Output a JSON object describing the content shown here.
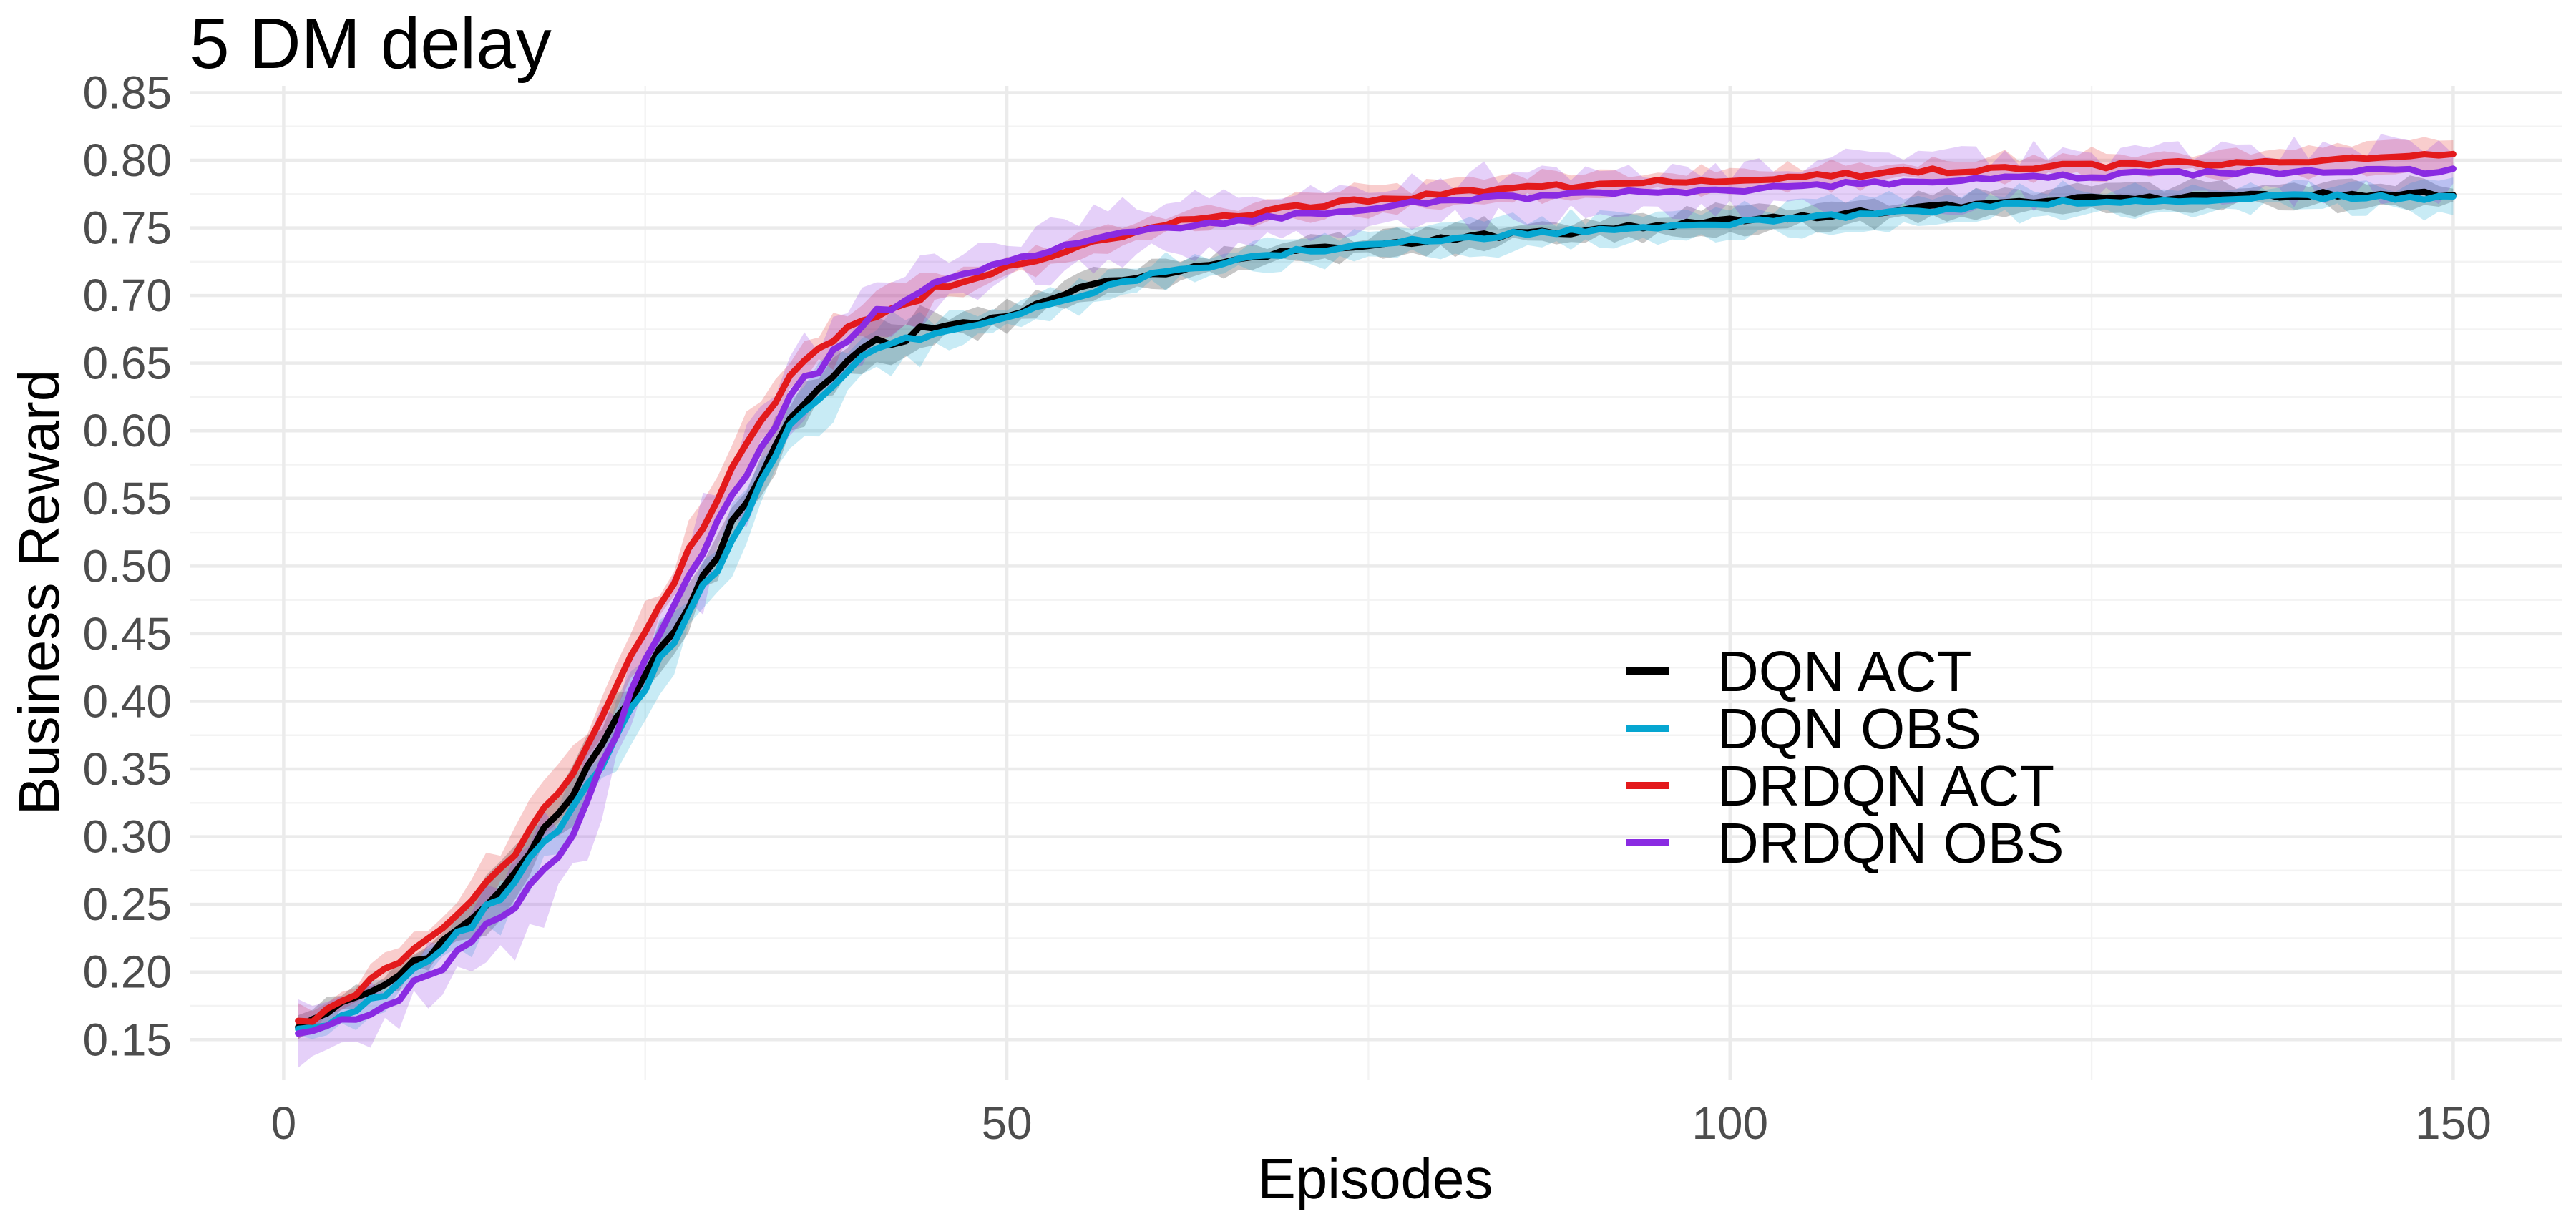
{
  "chart_data": {
    "type": "line",
    "title": "5 DM delay",
    "xlabel": "Episodes",
    "ylabel": "Business Reward",
    "xlim": [
      -6.5,
      157.5
    ],
    "ylim": [
      0.12,
      0.855
    ],
    "x_major_ticks": [
      0,
      50,
      100,
      150
    ],
    "x_tick_labels": [
      "0",
      "50",
      "100",
      "150"
    ],
    "x_minor_ticks": [
      25,
      75,
      125
    ],
    "y_major_ticks": [
      0.15,
      0.2,
      0.25,
      0.3,
      0.35,
      0.4,
      0.45,
      0.5,
      0.55,
      0.6,
      0.65,
      0.7,
      0.75,
      0.8,
      0.85
    ],
    "y_tick_labels": [
      "0.15",
      "0.20",
      "0.25",
      "0.30",
      "0.35",
      "0.40",
      "0.45",
      "0.50",
      "0.55",
      "0.60",
      "0.65",
      "0.70",
      "0.75",
      "0.80",
      "0.85"
    ],
    "y_minor_ticks": [
      0.175,
      0.225,
      0.275,
      0.325,
      0.375,
      0.425,
      0.475,
      0.525,
      0.575,
      0.625,
      0.675,
      0.725,
      0.775,
      0.825
    ],
    "grid": true,
    "legend_position": "center-right",
    "series": [
      {
        "name": "DQN ACT",
        "color": "#000000",
        "points": [
          [
            1,
            0.16
          ],
          [
            5,
            0.18
          ],
          [
            10,
            0.215
          ],
          [
            15,
            0.26
          ],
          [
            20,
            0.33
          ],
          [
            25,
            0.42
          ],
          [
            30,
            0.51
          ],
          [
            35,
            0.61
          ],
          [
            40,
            0.66
          ],
          [
            45,
            0.675
          ],
          [
            50,
            0.685
          ],
          [
            55,
            0.705
          ],
          [
            60,
            0.715
          ],
          [
            70,
            0.733
          ],
          [
            80,
            0.742
          ],
          [
            90,
            0.748
          ],
          [
            100,
            0.755
          ],
          [
            110,
            0.762
          ],
          [
            120,
            0.77
          ],
          [
            130,
            0.772
          ],
          [
            140,
            0.775
          ],
          [
            150,
            0.775
          ]
        ],
        "band": 0.006
      },
      {
        "name": "DQN OBS",
        "color": "#06a6d1",
        "points": [
          [
            1,
            0.155
          ],
          [
            5,
            0.172
          ],
          [
            10,
            0.205
          ],
          [
            15,
            0.255
          ],
          [
            20,
            0.32
          ],
          [
            25,
            0.41
          ],
          [
            30,
            0.5
          ],
          [
            35,
            0.6
          ],
          [
            40,
            0.655
          ],
          [
            45,
            0.67
          ],
          [
            50,
            0.683
          ],
          [
            55,
            0.7
          ],
          [
            60,
            0.715
          ],
          [
            70,
            0.733
          ],
          [
            80,
            0.742
          ],
          [
            90,
            0.748
          ],
          [
            100,
            0.754
          ],
          [
            110,
            0.76
          ],
          [
            120,
            0.768
          ],
          [
            130,
            0.77
          ],
          [
            140,
            0.773
          ],
          [
            150,
            0.772
          ]
        ],
        "band": 0.007
      },
      {
        "name": "DRDQN ACT",
        "color": "#e31a1c",
        "points": [
          [
            1,
            0.16
          ],
          [
            5,
            0.185
          ],
          [
            10,
            0.225
          ],
          [
            15,
            0.275
          ],
          [
            20,
            0.35
          ],
          [
            25,
            0.45
          ],
          [
            30,
            0.55
          ],
          [
            35,
            0.64
          ],
          [
            40,
            0.685
          ],
          [
            45,
            0.705
          ],
          [
            50,
            0.72
          ],
          [
            55,
            0.735
          ],
          [
            60,
            0.752
          ],
          [
            70,
            0.765
          ],
          [
            80,
            0.775
          ],
          [
            90,
            0.782
          ],
          [
            100,
            0.786
          ],
          [
            110,
            0.79
          ],
          [
            120,
            0.795
          ],
          [
            130,
            0.797
          ],
          [
            140,
            0.8
          ],
          [
            150,
            0.804
          ]
        ],
        "band": 0.006
      },
      {
        "name": "DRDQN OBS",
        "color": "#8a2be2",
        "points": [
          [
            1,
            0.155
          ],
          [
            5,
            0.165
          ],
          [
            10,
            0.195
          ],
          [
            15,
            0.24
          ],
          [
            20,
            0.3
          ],
          [
            25,
            0.43
          ],
          [
            30,
            0.53
          ],
          [
            35,
            0.625
          ],
          [
            40,
            0.68
          ],
          [
            45,
            0.71
          ],
          [
            50,
            0.725
          ],
          [
            55,
            0.74
          ],
          [
            60,
            0.748
          ],
          [
            70,
            0.76
          ],
          [
            80,
            0.77
          ],
          [
            90,
            0.775
          ],
          [
            100,
            0.778
          ],
          [
            110,
            0.783
          ],
          [
            120,
            0.787
          ],
          [
            130,
            0.79
          ],
          [
            140,
            0.792
          ],
          [
            150,
            0.792
          ]
        ],
        "band": 0.012
      }
    ]
  }
}
